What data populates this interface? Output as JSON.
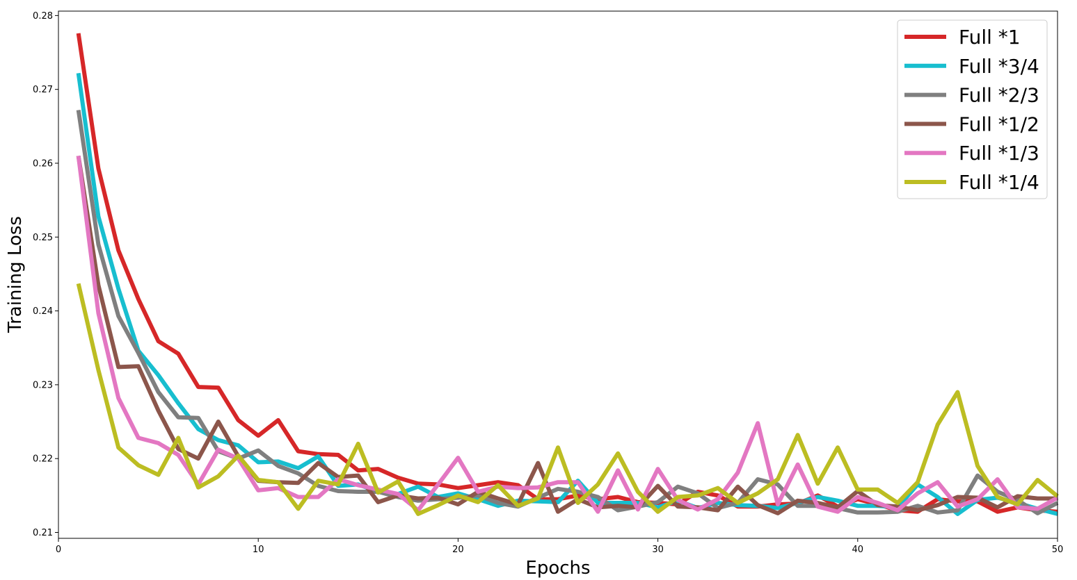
{
  "chart_data": {
    "type": "line",
    "title": "",
    "xlabel": "Epochs",
    "ylabel": "Training Loss",
    "xlim": [
      0,
      50
    ],
    "ylim": [
      0.2092,
      0.2806
    ],
    "x_ticks": [
      0,
      10,
      20,
      30,
      40,
      50
    ],
    "x_tick_labels": [
      "0",
      "10",
      "20",
      "30",
      "40",
      "50"
    ],
    "y_ticks": [
      0.21,
      0.22,
      0.23,
      0.24,
      0.25,
      0.26,
      0.27,
      0.28
    ],
    "y_tick_labels": [
      "0.21",
      "0.22",
      "0.23",
      "0.24",
      "0.25",
      "0.26",
      "0.27",
      "0.28"
    ],
    "grid": false,
    "legend_position": "top-right",
    "x": [
      1,
      2,
      3,
      4,
      5,
      6,
      7,
      8,
      9,
      10,
      11,
      12,
      13,
      14,
      15,
      16,
      17,
      18,
      19,
      20,
      21,
      22,
      23,
      24,
      25,
      26,
      27,
      28,
      29,
      30,
      31,
      32,
      33,
      34,
      35,
      36,
      37,
      38,
      39,
      40,
      41,
      42,
      43,
      44,
      45,
      46,
      47,
      48,
      49,
      50
    ],
    "series": [
      {
        "name": "Full *1",
        "color": "#d62728",
        "values": [
          0.2776,
          0.2593,
          0.2482,
          0.2416,
          0.2359,
          0.2342,
          0.2297,
          0.2296,
          0.2252,
          0.2231,
          0.2252,
          0.221,
          0.2206,
          0.2205,
          0.2184,
          0.2186,
          0.2174,
          0.2166,
          0.2165,
          0.216,
          0.2164,
          0.2168,
          0.2164,
          0.2145,
          0.2145,
          0.215,
          0.2145,
          0.2148,
          0.2141,
          0.214,
          0.2138,
          0.2155,
          0.215,
          0.2135,
          0.2135,
          0.2138,
          0.2139,
          0.215,
          0.2135,
          0.2145,
          0.2138,
          0.213,
          0.2128,
          0.2145,
          0.2142,
          0.2142,
          0.2128,
          0.2134,
          0.213,
          0.2128
        ]
      },
      {
        "name": "Full *3/4",
        "color": "#17becf",
        "values": [
          0.2722,
          0.2528,
          0.243,
          0.2346,
          0.2313,
          0.2275,
          0.224,
          0.2225,
          0.2218,
          0.2195,
          0.2196,
          0.2187,
          0.2203,
          0.2163,
          0.2165,
          0.2155,
          0.2152,
          0.2162,
          0.2148,
          0.2153,
          0.2145,
          0.2136,
          0.2143,
          0.2142,
          0.2141,
          0.217,
          0.214,
          0.214,
          0.214,
          0.2134,
          0.2143,
          0.2133,
          0.214,
          0.2137,
          0.2136,
          0.2133,
          0.214,
          0.2148,
          0.2143,
          0.2136,
          0.2136,
          0.2134,
          0.2165,
          0.2148,
          0.2125,
          0.2144,
          0.2147,
          0.214,
          0.2132,
          0.2125
        ]
      },
      {
        "name": "Full *2/3",
        "color": "#7f7f7f",
        "values": [
          0.2672,
          0.249,
          0.2393,
          0.2343,
          0.229,
          0.2256,
          0.2255,
          0.221,
          0.22,
          0.2211,
          0.219,
          0.218,
          0.2163,
          0.2156,
          0.2155,
          0.2155,
          0.2148,
          0.2143,
          0.2145,
          0.2147,
          0.215,
          0.214,
          0.2135,
          0.2147,
          0.2159,
          0.2155,
          0.2148,
          0.213,
          0.2135,
          0.2141,
          0.2162,
          0.2153,
          0.2133,
          0.214,
          0.2172,
          0.2165,
          0.2136,
          0.2136,
          0.2133,
          0.2127,
          0.2127,
          0.2128,
          0.2136,
          0.2127,
          0.213,
          0.2177,
          0.2155,
          0.2144,
          0.2126,
          0.214
        ]
      },
      {
        "name": "Full *1/2",
        "color": "#8c564b",
        "values": [
          0.261,
          0.2435,
          0.2324,
          0.2325,
          0.2265,
          0.2213,
          0.22,
          0.225,
          0.2203,
          0.217,
          0.2168,
          0.2167,
          0.2194,
          0.2175,
          0.2177,
          0.2141,
          0.215,
          0.2146,
          0.2147,
          0.2138,
          0.2155,
          0.2146,
          0.2138,
          0.2194,
          0.2128,
          0.2145,
          0.2134,
          0.2136,
          0.2134,
          0.2163,
          0.2135,
          0.2134,
          0.213,
          0.2162,
          0.2137,
          0.2126,
          0.2143,
          0.214,
          0.2134,
          0.2156,
          0.2137,
          0.2135,
          0.213,
          0.2137,
          0.2148,
          0.2147,
          0.2134,
          0.2149,
          0.2146,
          0.2146
        ]
      },
      {
        "name": "Full *1/3",
        "color": "#e377c2",
        "values": [
          0.261,
          0.2397,
          0.2282,
          0.2228,
          0.2221,
          0.2205,
          0.2165,
          0.2212,
          0.22,
          0.2157,
          0.216,
          0.2148,
          0.2148,
          0.2172,
          0.2164,
          0.2158,
          0.2152,
          0.213,
          0.2165,
          0.2201,
          0.2155,
          0.2162,
          0.216,
          0.2161,
          0.2168,
          0.2168,
          0.2128,
          0.2184,
          0.2131,
          0.2186,
          0.2144,
          0.2131,
          0.2145,
          0.2181,
          0.2248,
          0.2138,
          0.2192,
          0.2135,
          0.2128,
          0.2148,
          0.214,
          0.213,
          0.2153,
          0.2168,
          0.2135,
          0.2145,
          0.2172,
          0.2134,
          0.2132,
          0.2147
        ]
      },
      {
        "name": "Full *1/4",
        "color": "#bcbd22",
        "values": [
          0.2437,
          0.232,
          0.2215,
          0.2191,
          0.2178,
          0.2228,
          0.2161,
          0.2176,
          0.2204,
          0.2171,
          0.2168,
          0.2132,
          0.217,
          0.2165,
          0.222,
          0.2154,
          0.2169,
          0.2125,
          0.2137,
          0.215,
          0.2141,
          0.2164,
          0.2136,
          0.2146,
          0.2215,
          0.214,
          0.2165,
          0.2207,
          0.2155,
          0.2128,
          0.2148,
          0.215,
          0.216,
          0.214,
          0.2153,
          0.2172,
          0.2232,
          0.2166,
          0.2215,
          0.2158,
          0.2158,
          0.214,
          0.2168,
          0.2246,
          0.229,
          0.219,
          0.2148,
          0.2138,
          0.2171,
          0.2149
        ]
      }
    ]
  }
}
